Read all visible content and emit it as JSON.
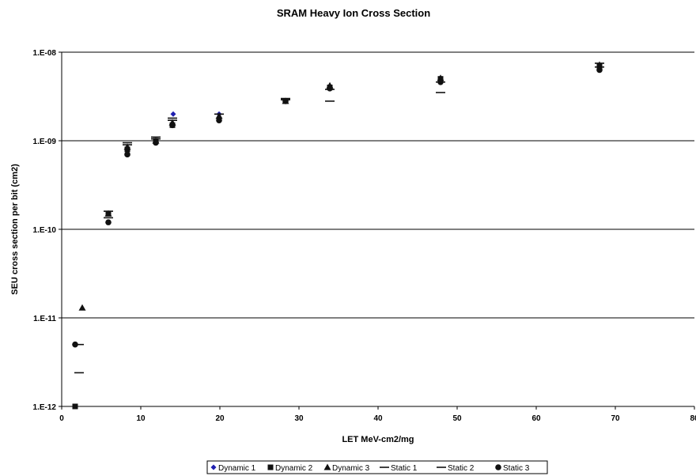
{
  "chart_data": {
    "type": "scatter",
    "title": "SRAM Heavy Ion Cross Section",
    "xlabel": "LET MeV-cm2/mg",
    "ylabel": "SEU cross section per bit (cm2)",
    "xlim": [
      0,
      80
    ],
    "ylim": [
      1e-12,
      1e-08
    ],
    "yscale": "log",
    "xticks": [
      0,
      10,
      20,
      30,
      40,
      50,
      60,
      70,
      80
    ],
    "xtick_labels": [
      "0",
      "10",
      "20",
      "30",
      "40",
      "50",
      "60",
      "70",
      "80"
    ],
    "yticks": [
      1e-12,
      1e-11,
      1e-10,
      1e-09,
      1e-08
    ],
    "ytick_labels": [
      "1.E-12",
      "1.E-11",
      "1.E-10",
      "1.E-09",
      "1.E-08"
    ],
    "grid": "horizontal",
    "legend_position": "bottom",
    "series": [
      {
        "name": "Dynamic 1",
        "marker": "diamond",
        "color": "#1f1fb0",
        "x": [
          14.1,
          19.9
        ],
        "y": [
          2e-09,
          2e-09
        ]
      },
      {
        "name": "Dynamic 2",
        "marker": "square",
        "color": "#111111",
        "x": [
          1.7,
          5.9,
          8.3,
          11.9,
          14.0,
          28.3,
          33.9,
          47.9,
          68.0
        ],
        "y": [
          1e-12,
          1.5e-10,
          8e-10,
          1e-09,
          1.5e-09,
          2.8e-09,
          4e-09,
          5e-09,
          7e-09
        ]
      },
      {
        "name": "Dynamic 3",
        "marker": "triangle",
        "color": "#111111",
        "x": [
          2.6,
          5.9,
          8.3,
          11.9,
          14.0,
          19.9,
          28.3,
          33.9,
          47.9,
          68.0
        ],
        "y": [
          1.3e-11,
          1.5e-10,
          8.5e-10,
          1e-09,
          1.6e-09,
          1.9e-09,
          2.8e-09,
          4.2e-09,
          5.1e-09,
          7.2e-09
        ]
      },
      {
        "name": "Static 1",
        "marker": "dash",
        "color": "#111111",
        "x": [
          2.2,
          2.2,
          5.9,
          8.3,
          11.9,
          14.0,
          19.9,
          28.3,
          33.9,
          47.9,
          68.0
        ],
        "y": [
          5e-12,
          2.4e-12,
          1.6e-10,
          9.5e-10,
          1.1e-09,
          1.8e-09,
          2e-09,
          3e-09,
          2.8e-09,
          3.5e-09,
          7.5e-09
        ]
      },
      {
        "name": "Static 2",
        "marker": "dash",
        "color": "#111111",
        "x": [
          5.9,
          8.3,
          11.9,
          14.0,
          19.9,
          28.3,
          33.9,
          47.9,
          68.0
        ],
        "y": [
          1.35e-10,
          9e-10,
          1.05e-09,
          1.7e-09,
          2e-09,
          2.9e-09,
          3.8e-09,
          4.6e-09,
          6.8e-09
        ]
      },
      {
        "name": "Static 3",
        "marker": "circle",
        "color": "#111111",
        "x": [
          1.7,
          5.9,
          8.3,
          11.9,
          14.0,
          19.9,
          28.3,
          33.9,
          47.9,
          68.0
        ],
        "y": [
          5e-12,
          1.2e-10,
          7e-10,
          9.5e-10,
          1.5e-09,
          1.7e-09,
          2.8e-09,
          3.9e-09,
          4.6e-09,
          6.3e-09
        ]
      }
    ]
  }
}
